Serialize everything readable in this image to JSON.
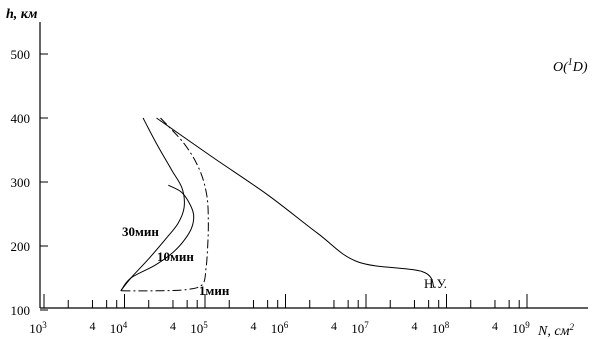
{
  "chart_data": {
    "type": "line",
    "title": "O(¹D)",
    "title_main": "O(",
    "title_sup": "1",
    "title_tail": "D)",
    "xlabel": "N, см",
    "xlabel_sup": "2",
    "ylabel": "h, км",
    "x_scale": "log",
    "xlim": [
      1000,
      10000000000
    ],
    "ylim": [
      100,
      540
    ],
    "grid": false,
    "x_major_ticks": [
      {
        "value": 1000,
        "base": "10",
        "exp": "3"
      },
      {
        "value": 10000,
        "base": "10",
        "exp": "4"
      },
      {
        "value": 100000,
        "base": "10",
        "exp": "5"
      },
      {
        "value": 1000000,
        "base": "10",
        "exp": "6"
      },
      {
        "value": 10000000,
        "base": "10",
        "exp": "7"
      },
      {
        "value": 100000000,
        "base": "10",
        "exp": "8"
      },
      {
        "value": 1000000000,
        "base": "10",
        "exp": "9"
      }
    ],
    "x_minor_label_values": [
      4000,
      40000,
      400000,
      4000000,
      40000000,
      400000000
    ],
    "x_minor_label_text": "4",
    "y_ticks": [
      100,
      200,
      300,
      400,
      500
    ],
    "y_tick_labels": [
      "100",
      "200",
      "300",
      "400",
      "500"
    ],
    "series": [
      {
        "name": "Н.У.",
        "style": "solid",
        "x": [
          25000,
          120000,
          600000,
          2500000,
          8000000,
          50000000,
          70000000
        ],
        "y": [
          400,
          340,
          280,
          220,
          175,
          160,
          135
        ]
      },
      {
        "name": "30мин",
        "style": "solid",
        "x": [
          17000,
          25000,
          38000,
          52000,
          55000,
          46000,
          32000,
          20000,
          12000,
          9000
        ],
        "y": [
          400,
          360,
          320,
          290,
          260,
          235,
          210,
          180,
          150,
          130
        ]
      },
      {
        "name": "10мин",
        "style": "solid",
        "x": [
          35000,
          50000,
          62000,
          72000,
          69000,
          56000,
          40000,
          24000,
          12000,
          9000
        ],
        "y": [
          295,
          285,
          270,
          250,
          230,
          210,
          190,
          170,
          150,
          130
        ]
      },
      {
        "name": "1мин",
        "style": "dashdot",
        "x": [
          28000,
          55000,
          85000,
          105000,
          110000,
          108000,
          103000,
          93000,
          60000,
          25000,
          9000
        ],
        "y": [
          400,
          360,
          320,
          280,
          240,
          200,
          165,
          140,
          132,
          130,
          130
        ]
      }
    ]
  }
}
